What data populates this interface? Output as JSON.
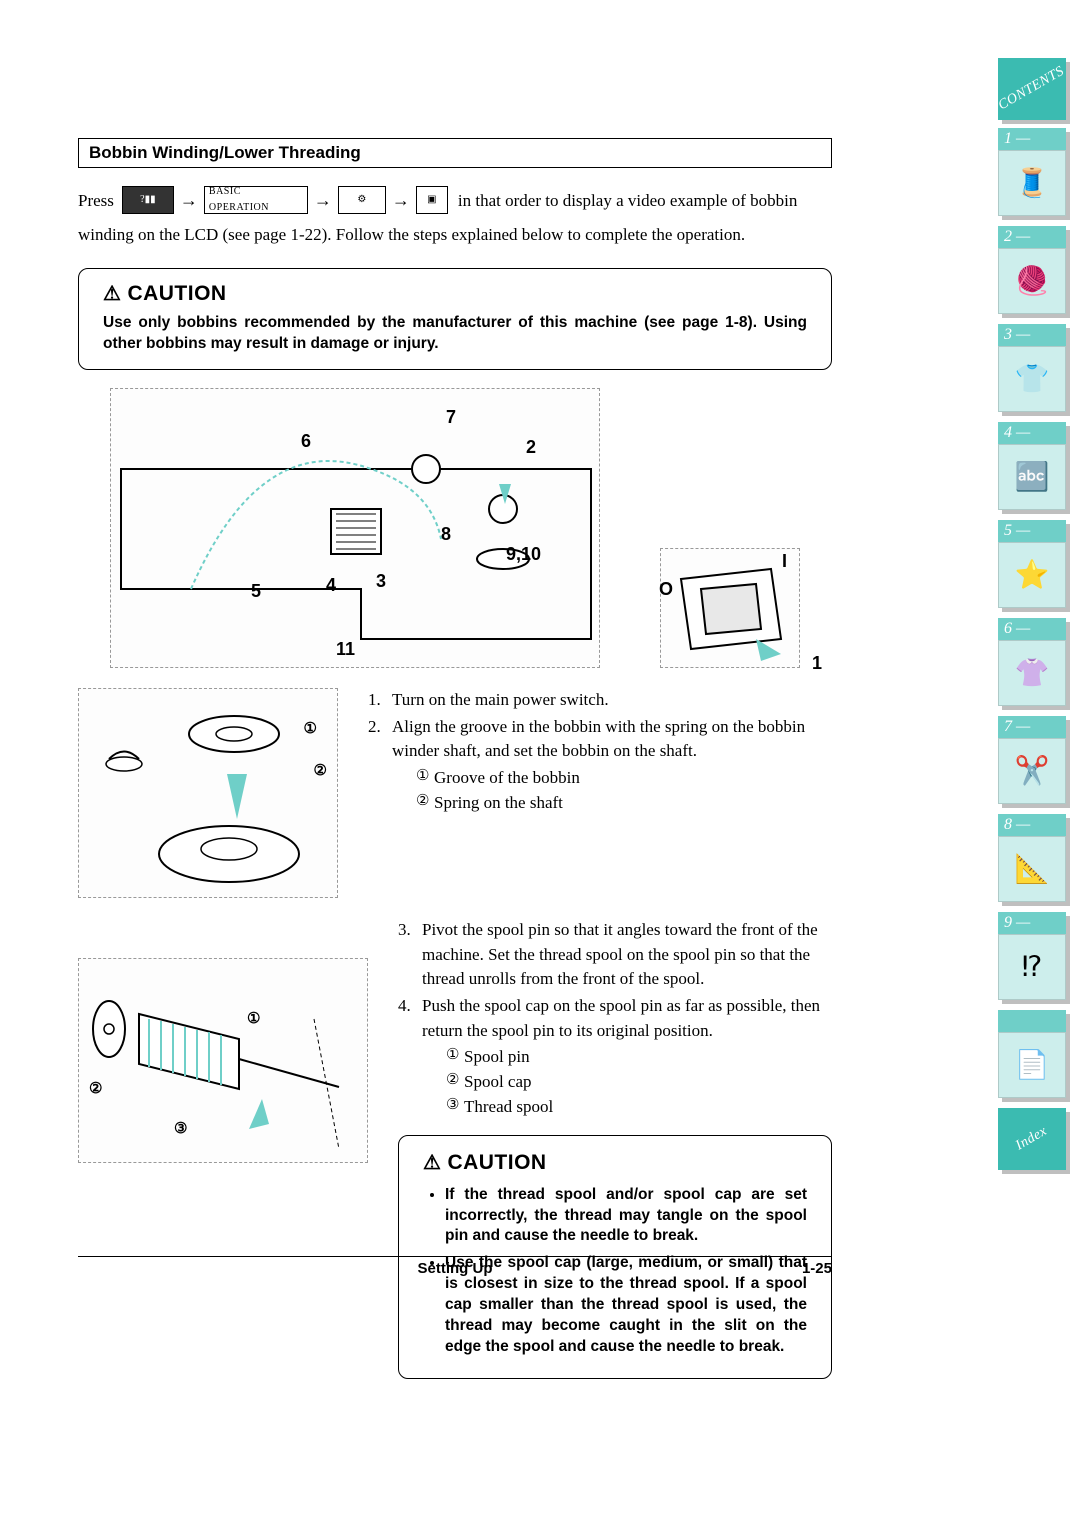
{
  "colors": {
    "tab_bg": "#6fcfc8",
    "tab_body_bg": "#cdeeec",
    "contents_bg": "#3bbbb1",
    "shadow": "#9aa0a0"
  },
  "section_title": "Bobbin Winding/Lower Threading",
  "intro": {
    "press": "Press",
    "basic_op_label": "BASIC OPERATION",
    "tail": "in that order to display a video example of bobbin",
    "line2": "winding on the LCD (see page 1-22). Follow the steps explained below to complete the operation."
  },
  "caution1": {
    "title": "CAUTION",
    "text": "Use only bobbins recommended by the manufacturer of this machine (see page 1-8). Using other bobbins may result in damage or injury."
  },
  "main_diagram_labels": {
    "l7": "7",
    "l6": "6",
    "l2": "2",
    "l8": "8",
    "l910": "9,10",
    "l5": "5",
    "l4": "4",
    "l3": "3",
    "l11": "11"
  },
  "switch_labels": {
    "I": "I",
    "O": "O",
    "one": "1"
  },
  "steps": [
    {
      "n": "1.",
      "text": "Turn on the main power switch."
    },
    {
      "n": "2.",
      "text": "Align the groove in the bobbin with the spring on the bobbin winder shaft, and set the bobbin on the shaft.",
      "subs": [
        {
          "c": "①",
          "t": "Groove of the bobbin"
        },
        {
          "c": "②",
          "t": "Spring on the shaft"
        }
      ]
    },
    {
      "n": "3.",
      "text": "Pivot the spool pin so that it angles toward the front of the machine. Set the thread spool on the spool pin so that the thread unrolls from the front of the spool."
    },
    {
      "n": "4.",
      "text": "Push the spool cap on the spool pin as far as possible, then return the spool pin to its original position.",
      "subs": [
        {
          "c": "①",
          "t": "Spool pin"
        },
        {
          "c": "②",
          "t": "Spool cap"
        },
        {
          "c": "③",
          "t": "Thread spool"
        }
      ]
    }
  ],
  "caution2": {
    "title": "CAUTION",
    "items": [
      "If the thread spool and/or spool cap are set incorrectly, the thread may tangle on the spool pin and cause the needle to break.",
      "Use the spool cap (large, medium, or small) that is closest in size to the thread spool. If a spool cap smaller than the thread spool is used, the thread may become caught in the slit on the edge the spool and cause the needle to break."
    ]
  },
  "footer": {
    "title": "Setting Up",
    "page": "1-25"
  },
  "tabs": {
    "contents": "CONTENTS",
    "index": "Index",
    "items": [
      {
        "n": "1 —",
        "glyph": "🧵"
      },
      {
        "n": "2 —",
        "glyph": "🧶"
      },
      {
        "n": "3 —",
        "glyph": "👕"
      },
      {
        "n": "4 —",
        "glyph": "🔤"
      },
      {
        "n": "5 —",
        "glyph": "⭐"
      },
      {
        "n": "6 —",
        "glyph": "👚"
      },
      {
        "n": "7 —",
        "glyph": "✂️"
      },
      {
        "n": "8 —",
        "glyph": "📐"
      },
      {
        "n": "9 —",
        "glyph": "⁉"
      },
      {
        "n": "",
        "glyph": "📄"
      }
    ]
  },
  "bobbin_diagram_labels": {
    "c1": "①",
    "c2": "②"
  },
  "spool_diagram_labels": {
    "c1": "①",
    "c2": "②",
    "c3": "③"
  }
}
